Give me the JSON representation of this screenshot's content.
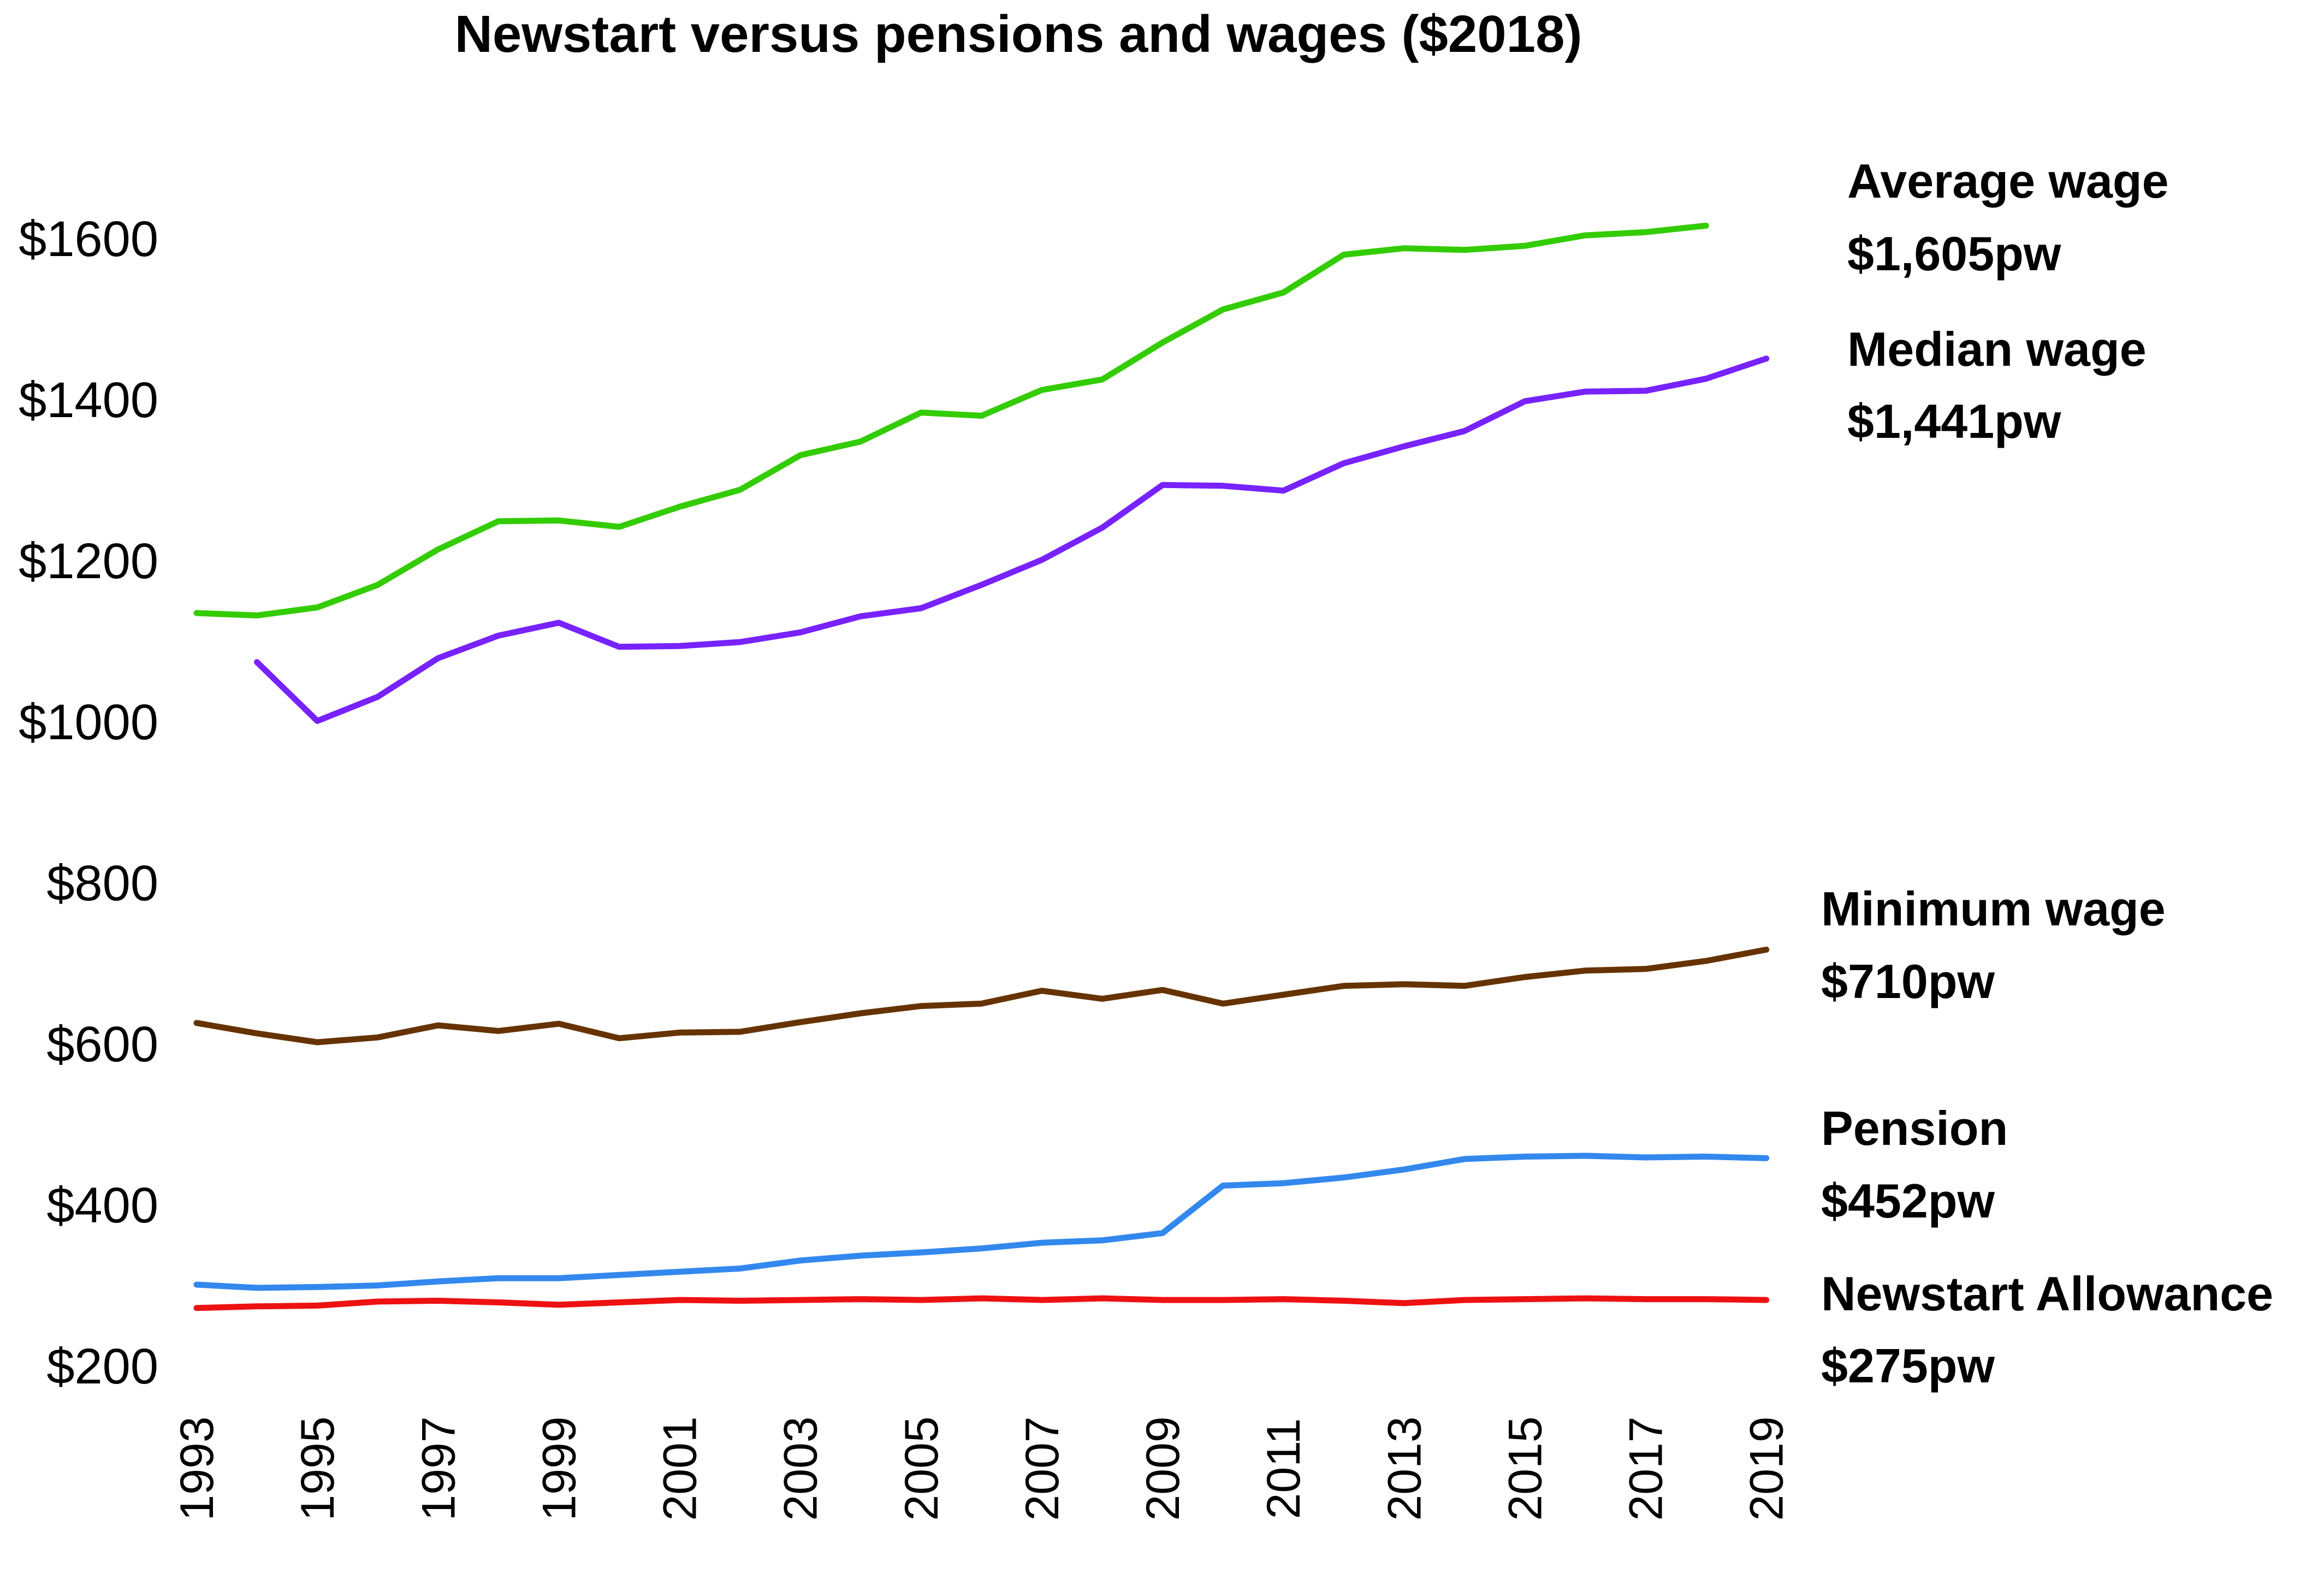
{
  "chart_data": {
    "type": "line",
    "title": "Newstart versus pensions and wages ($2018)",
    "xlabel": "",
    "ylabel": "",
    "x_ticks": [
      "1993",
      "1995",
      "1997",
      "1999",
      "2001",
      "2003",
      "2005",
      "2007",
      "2009",
      "2011",
      "2013",
      "2015",
      "2017",
      "2019"
    ],
    "y_ticks": [
      "$200",
      "$400",
      "$600",
      "$800",
      "$1000",
      "$1200",
      "$1400",
      "$1600"
    ],
    "xlim": [
      1993,
      2019.5
    ],
    "ylim": [
      200,
      1600
    ],
    "grid": false,
    "legend": "none",
    "series": [
      {
        "name": "Average wage",
        "value_label": "$1,605pw",
        "color": "#33cc00",
        "x": [
          1993,
          1994,
          1995,
          1996,
          1997,
          1998,
          1999,
          2000,
          2001,
          2002,
          2003,
          2004,
          2005,
          2006,
          2007,
          2008,
          2009,
          2010,
          2011,
          2012,
          2013,
          2014,
          2015,
          2016,
          2017,
          2018
        ],
        "y": [
          1135,
          1132,
          1142,
          1170,
          1214,
          1249,
          1250,
          1242,
          1267,
          1288,
          1331,
          1348,
          1384,
          1380,
          1412,
          1425,
          1471,
          1512,
          1533,
          1580,
          1588,
          1586,
          1591,
          1604,
          1608,
          1616
        ]
      },
      {
        "name": "Median wage",
        "value_label": "$1,441pw",
        "color": "#7722ff",
        "x": [
          1994,
          1995,
          1996,
          1997,
          1998,
          1999,
          2000,
          2001,
          2002,
          2003,
          2004,
          2005,
          2006,
          2007,
          2008,
          2009,
          2010,
          2011,
          2012,
          2013,
          2014,
          2015,
          2016,
          2017,
          2018,
          2019
        ],
        "y": [
          1074,
          1001,
          1031,
          1079,
          1107,
          1123,
          1093,
          1094,
          1099,
          1111,
          1131,
          1141,
          1170,
          1201,
          1241,
          1294,
          1293,
          1287,
          1321,
          1342,
          1361,
          1398,
          1410,
          1411,
          1426,
          1451
        ]
      },
      {
        "name": "Minimum wage",
        "value_label": "$710pw",
        "color": "#663300",
        "x": [
          1993,
          1994,
          1995,
          1996,
          1997,
          1998,
          1999,
          2000,
          2001,
          2002,
          2003,
          2004,
          2005,
          2006,
          2007,
          2008,
          2009,
          2010,
          2011,
          2012,
          2013,
          2014,
          2015,
          2016,
          2017,
          2018,
          2019
        ],
        "y": [
          626,
          613,
          602,
          608,
          623,
          616,
          625,
          607,
          614,
          615,
          627,
          638,
          647,
          650,
          666,
          656,
          667,
          650,
          661,
          672,
          674,
          672,
          683,
          691,
          693,
          703,
          717
        ]
      },
      {
        "name": "Pension",
        "value_label": "$452pw",
        "color": "#3388ee",
        "x": [
          1993,
          1994,
          1995,
          1996,
          1997,
          1998,
          1999,
          2000,
          2001,
          2002,
          2003,
          2004,
          2005,
          2006,
          2007,
          2008,
          2009,
          2010,
          2011,
          2012,
          2013,
          2014,
          2015,
          2016,
          2017,
          2018,
          2019
        ],
        "y": [
          301,
          297,
          298,
          300,
          305,
          309,
          309,
          313,
          317,
          321,
          331,
          337,
          341,
          346,
          353,
          356,
          365,
          424,
          427,
          434,
          444,
          457,
          460,
          461,
          459,
          460,
          458
        ]
      },
      {
        "name": "Newstart Allowance",
        "value_label": "$275pw",
        "color": "#ee1111",
        "x": [
          1993,
          1994,
          1995,
          1996,
          1997,
          1998,
          1999,
          2000,
          2001,
          2002,
          2003,
          2004,
          2005,
          2006,
          2007,
          2008,
          2009,
          2010,
          2011,
          2012,
          2013,
          2014,
          2015,
          2016,
          2017,
          2018,
          2019
        ],
        "y": [
          272,
          274,
          275,
          280,
          281,
          279,
          276,
          279,
          282,
          281,
          282,
          283,
          282,
          284,
          282,
          284,
          282,
          282,
          283,
          281,
          278,
          282,
          283,
          284,
          283,
          283,
          282
        ]
      }
    ]
  }
}
